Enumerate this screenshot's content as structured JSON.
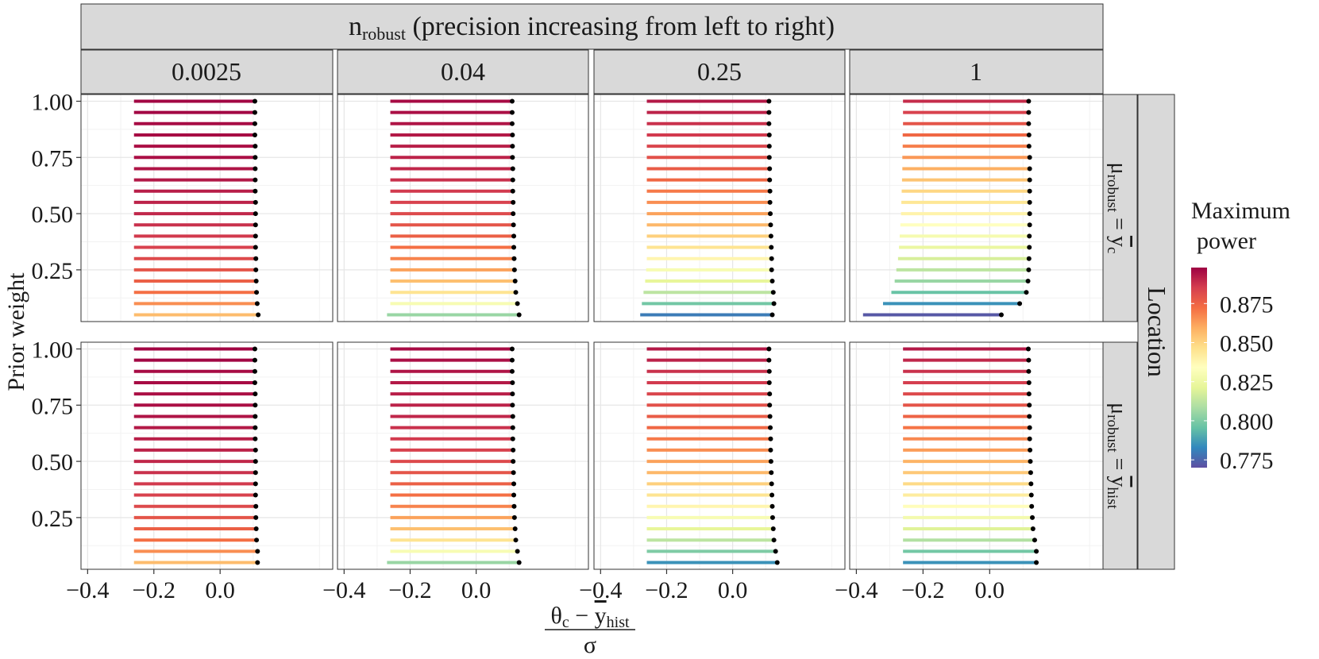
{
  "chart_data": {
    "type": "faceted-range-dotplot",
    "facet_top_title_main": "n",
    "facet_top_title_sub": "robust",
    "facet_top_title_rest": " (precision increasing from left to right)",
    "column_labels": [
      "0.0025",
      "0.04",
      "0.25",
      "1"
    ],
    "row_group_label": "Location",
    "row_labels": [
      {
        "mu": "μ",
        "mu_sub": "robust",
        "eq": " = ",
        "y": "y",
        "y_sub": "c"
      },
      {
        "mu": "μ",
        "mu_sub": "robust",
        "eq": " = ",
        "y": "y",
        "y_sub": "hist"
      }
    ],
    "ylabel": "Prior weight",
    "xlabel": {
      "num_theta": "θ",
      "num_theta_sub": "c",
      "num_minus": " − ",
      "num_y": "y",
      "num_y_sub": "hist",
      "den": "σ"
    },
    "xlim": [
      -0.42,
      0.34
    ],
    "ylim": [
      0.02,
      1.03
    ],
    "x_ticks": [
      -0.4,
      -0.2,
      0.0
    ],
    "x_tick_labels": [
      "−0.4",
      "−0.2",
      "0.0"
    ],
    "y_ticks": [
      0.25,
      0.5,
      0.75,
      1.0
    ],
    "y_tick_labels": [
      "0.25",
      "0.50",
      "0.75",
      "1.00"
    ],
    "legend": {
      "title_line1": "Maximum",
      "title_line2": "power",
      "min": 0.77,
      "max": 0.898,
      "ticks": [
        0.775,
        0.8,
        0.825,
        0.85,
        0.875
      ],
      "tick_labels": [
        "0.775",
        "0.800",
        "0.825",
        "0.850",
        "0.875"
      ],
      "colors": [
        "#5e4fa2",
        "#3288bd",
        "#66c2a5",
        "#abdda4",
        "#e6f598",
        "#ffffbf",
        "#fee08b",
        "#fdae61",
        "#f46d43",
        "#d53e4f",
        "#9e0142"
      ]
    },
    "prior_weights": [
      0.05,
      0.1,
      0.15,
      0.2,
      0.25,
      0.3,
      0.35,
      0.4,
      0.45,
      0.5,
      0.55,
      0.6,
      0.65,
      0.7,
      0.75,
      0.8,
      0.85,
      0.9,
      0.95,
      1.0
    ],
    "panels": [
      {
        "row": 0,
        "col": 0,
        "start": [
          -0.26,
          -0.26,
          -0.26,
          -0.26,
          -0.26,
          -0.26,
          -0.26,
          -0.26,
          -0.26,
          -0.26,
          -0.26,
          -0.26,
          -0.26,
          -0.26,
          -0.26,
          -0.26,
          -0.26,
          -0.26,
          -0.26,
          -0.26
        ],
        "end": [
          0.115,
          0.112,
          0.11,
          0.109,
          0.108,
          0.108,
          0.107,
          0.107,
          0.107,
          0.107,
          0.107,
          0.106,
          0.106,
          0.106,
          0.106,
          0.106,
          0.105,
          0.105,
          0.105,
          0.105
        ],
        "power": [
          0.856,
          0.866,
          0.872,
          0.876,
          0.879,
          0.882,
          0.884,
          0.886,
          0.888,
          0.89,
          0.891,
          0.892,
          0.893,
          0.894,
          0.895,
          0.895,
          0.896,
          0.896,
          0.897,
          0.897
        ]
      },
      {
        "row": 0,
        "col": 1,
        "start": [
          -0.27,
          -0.26,
          -0.26,
          -0.26,
          -0.26,
          -0.26,
          -0.26,
          -0.26,
          -0.26,
          -0.26,
          -0.26,
          -0.26,
          -0.26,
          -0.26,
          -0.26,
          -0.26,
          -0.26,
          -0.26,
          -0.26,
          -0.26
        ],
        "end": [
          0.13,
          0.125,
          0.12,
          0.118,
          0.116,
          0.115,
          0.114,
          0.114,
          0.113,
          0.112,
          0.112,
          0.111,
          0.111,
          0.111,
          0.11,
          0.11,
          0.11,
          0.109,
          0.109,
          0.109
        ],
        "power": [
          0.805,
          0.83,
          0.845,
          0.855,
          0.862,
          0.868,
          0.872,
          0.876,
          0.879,
          0.882,
          0.884,
          0.886,
          0.888,
          0.89,
          0.891,
          0.892,
          0.893,
          0.894,
          0.895,
          0.896
        ]
      },
      {
        "row": 0,
        "col": 2,
        "start": [
          -0.28,
          -0.275,
          -0.27,
          -0.265,
          -0.262,
          -0.26,
          -0.26,
          -0.26,
          -0.26,
          -0.26,
          -0.26,
          -0.26,
          -0.26,
          -0.26,
          -0.26,
          -0.26,
          -0.26,
          -0.26,
          -0.26,
          -0.26
        ],
        "end": [
          0.12,
          0.125,
          0.123,
          0.12,
          0.118,
          0.118,
          0.117,
          0.116,
          0.115,
          0.114,
          0.113,
          0.113,
          0.112,
          0.112,
          0.111,
          0.111,
          0.111,
          0.11,
          0.11,
          0.11
        ],
        "power": [
          0.78,
          0.798,
          0.812,
          0.822,
          0.83,
          0.838,
          0.845,
          0.851,
          0.857,
          0.862,
          0.866,
          0.87,
          0.874,
          0.877,
          0.88,
          0.883,
          0.886,
          0.888,
          0.891,
          0.893
        ]
      },
      {
        "row": 0,
        "col": 3,
        "start": [
          -0.38,
          -0.32,
          -0.295,
          -0.285,
          -0.28,
          -0.275,
          -0.272,
          -0.27,
          -0.268,
          -0.266,
          -0.265,
          -0.264,
          -0.263,
          -0.262,
          -0.262,
          -0.261,
          -0.261,
          -0.26,
          -0.26,
          -0.26
        ],
        "end": [
          0.035,
          0.09,
          0.11,
          0.115,
          0.117,
          0.118,
          0.119,
          0.119,
          0.12,
          0.12,
          0.12,
          0.12,
          0.12,
          0.12,
          0.12,
          0.118,
          0.118,
          0.117,
          0.117,
          0.117
        ],
        "power": [
          0.772,
          0.785,
          0.796,
          0.805,
          0.812,
          0.818,
          0.824,
          0.829,
          0.834,
          0.839,
          0.844,
          0.849,
          0.854,
          0.859,
          0.864,
          0.869,
          0.874,
          0.879,
          0.884,
          0.889
        ]
      },
      {
        "row": 1,
        "col": 0,
        "start": [
          -0.26,
          -0.26,
          -0.26,
          -0.26,
          -0.26,
          -0.26,
          -0.26,
          -0.26,
          -0.26,
          -0.26,
          -0.26,
          -0.26,
          -0.26,
          -0.26,
          -0.26,
          -0.26,
          -0.26,
          -0.26,
          -0.26,
          -0.26
        ],
        "end": [
          0.113,
          0.113,
          0.11,
          0.109,
          0.108,
          0.108,
          0.107,
          0.107,
          0.107,
          0.107,
          0.107,
          0.106,
          0.106,
          0.106,
          0.106,
          0.106,
          0.105,
          0.105,
          0.105,
          0.105
        ],
        "power": [
          0.856,
          0.866,
          0.872,
          0.876,
          0.879,
          0.882,
          0.884,
          0.886,
          0.888,
          0.89,
          0.891,
          0.892,
          0.893,
          0.894,
          0.895,
          0.895,
          0.896,
          0.896,
          0.897,
          0.897
        ]
      },
      {
        "row": 1,
        "col": 1,
        "start": [
          -0.27,
          -0.26,
          -0.26,
          -0.26,
          -0.26,
          -0.26,
          -0.26,
          -0.26,
          -0.26,
          -0.26,
          -0.26,
          -0.26,
          -0.26,
          -0.26,
          -0.26,
          -0.26,
          -0.26,
          -0.26,
          -0.26,
          -0.26
        ],
        "end": [
          0.13,
          0.125,
          0.12,
          0.118,
          0.116,
          0.115,
          0.114,
          0.114,
          0.113,
          0.112,
          0.112,
          0.111,
          0.111,
          0.111,
          0.11,
          0.11,
          0.11,
          0.109,
          0.109,
          0.109
        ],
        "power": [
          0.805,
          0.83,
          0.845,
          0.855,
          0.862,
          0.868,
          0.872,
          0.876,
          0.879,
          0.882,
          0.884,
          0.886,
          0.888,
          0.89,
          0.891,
          0.892,
          0.893,
          0.894,
          0.895,
          0.896
        ]
      },
      {
        "row": 1,
        "col": 2,
        "start": [
          -0.26,
          -0.26,
          -0.26,
          -0.26,
          -0.26,
          -0.26,
          -0.26,
          -0.26,
          -0.26,
          -0.26,
          -0.26,
          -0.26,
          -0.26,
          -0.26,
          -0.26,
          -0.26,
          -0.26,
          -0.26,
          -0.26,
          -0.26
        ],
        "end": [
          0.135,
          0.13,
          0.125,
          0.123,
          0.121,
          0.12,
          0.119,
          0.118,
          0.117,
          0.116,
          0.115,
          0.115,
          0.114,
          0.113,
          0.112,
          0.112,
          0.111,
          0.111,
          0.11,
          0.11
        ],
        "power": [
          0.785,
          0.8,
          0.812,
          0.822,
          0.83,
          0.838,
          0.845,
          0.851,
          0.857,
          0.862,
          0.866,
          0.87,
          0.874,
          0.877,
          0.88,
          0.883,
          0.886,
          0.888,
          0.891,
          0.893
        ]
      },
      {
        "row": 1,
        "col": 3,
        "start": [
          -0.26,
          -0.26,
          -0.26,
          -0.26,
          -0.26,
          -0.26,
          -0.26,
          -0.26,
          -0.26,
          -0.26,
          -0.26,
          -0.26,
          -0.26,
          -0.26,
          -0.26,
          -0.26,
          -0.26,
          -0.26,
          -0.26,
          -0.26
        ],
        "end": [
          0.14,
          0.14,
          0.135,
          0.13,
          0.128,
          0.126,
          0.125,
          0.124,
          0.123,
          0.122,
          0.121,
          0.12,
          0.12,
          0.119,
          0.119,
          0.118,
          0.118,
          0.117,
          0.117,
          0.116
        ],
        "power": [
          0.785,
          0.798,
          0.81,
          0.82,
          0.828,
          0.835,
          0.842,
          0.848,
          0.853,
          0.858,
          0.863,
          0.867,
          0.871,
          0.875,
          0.879,
          0.882,
          0.885,
          0.888,
          0.89,
          0.893
        ]
      }
    ]
  }
}
